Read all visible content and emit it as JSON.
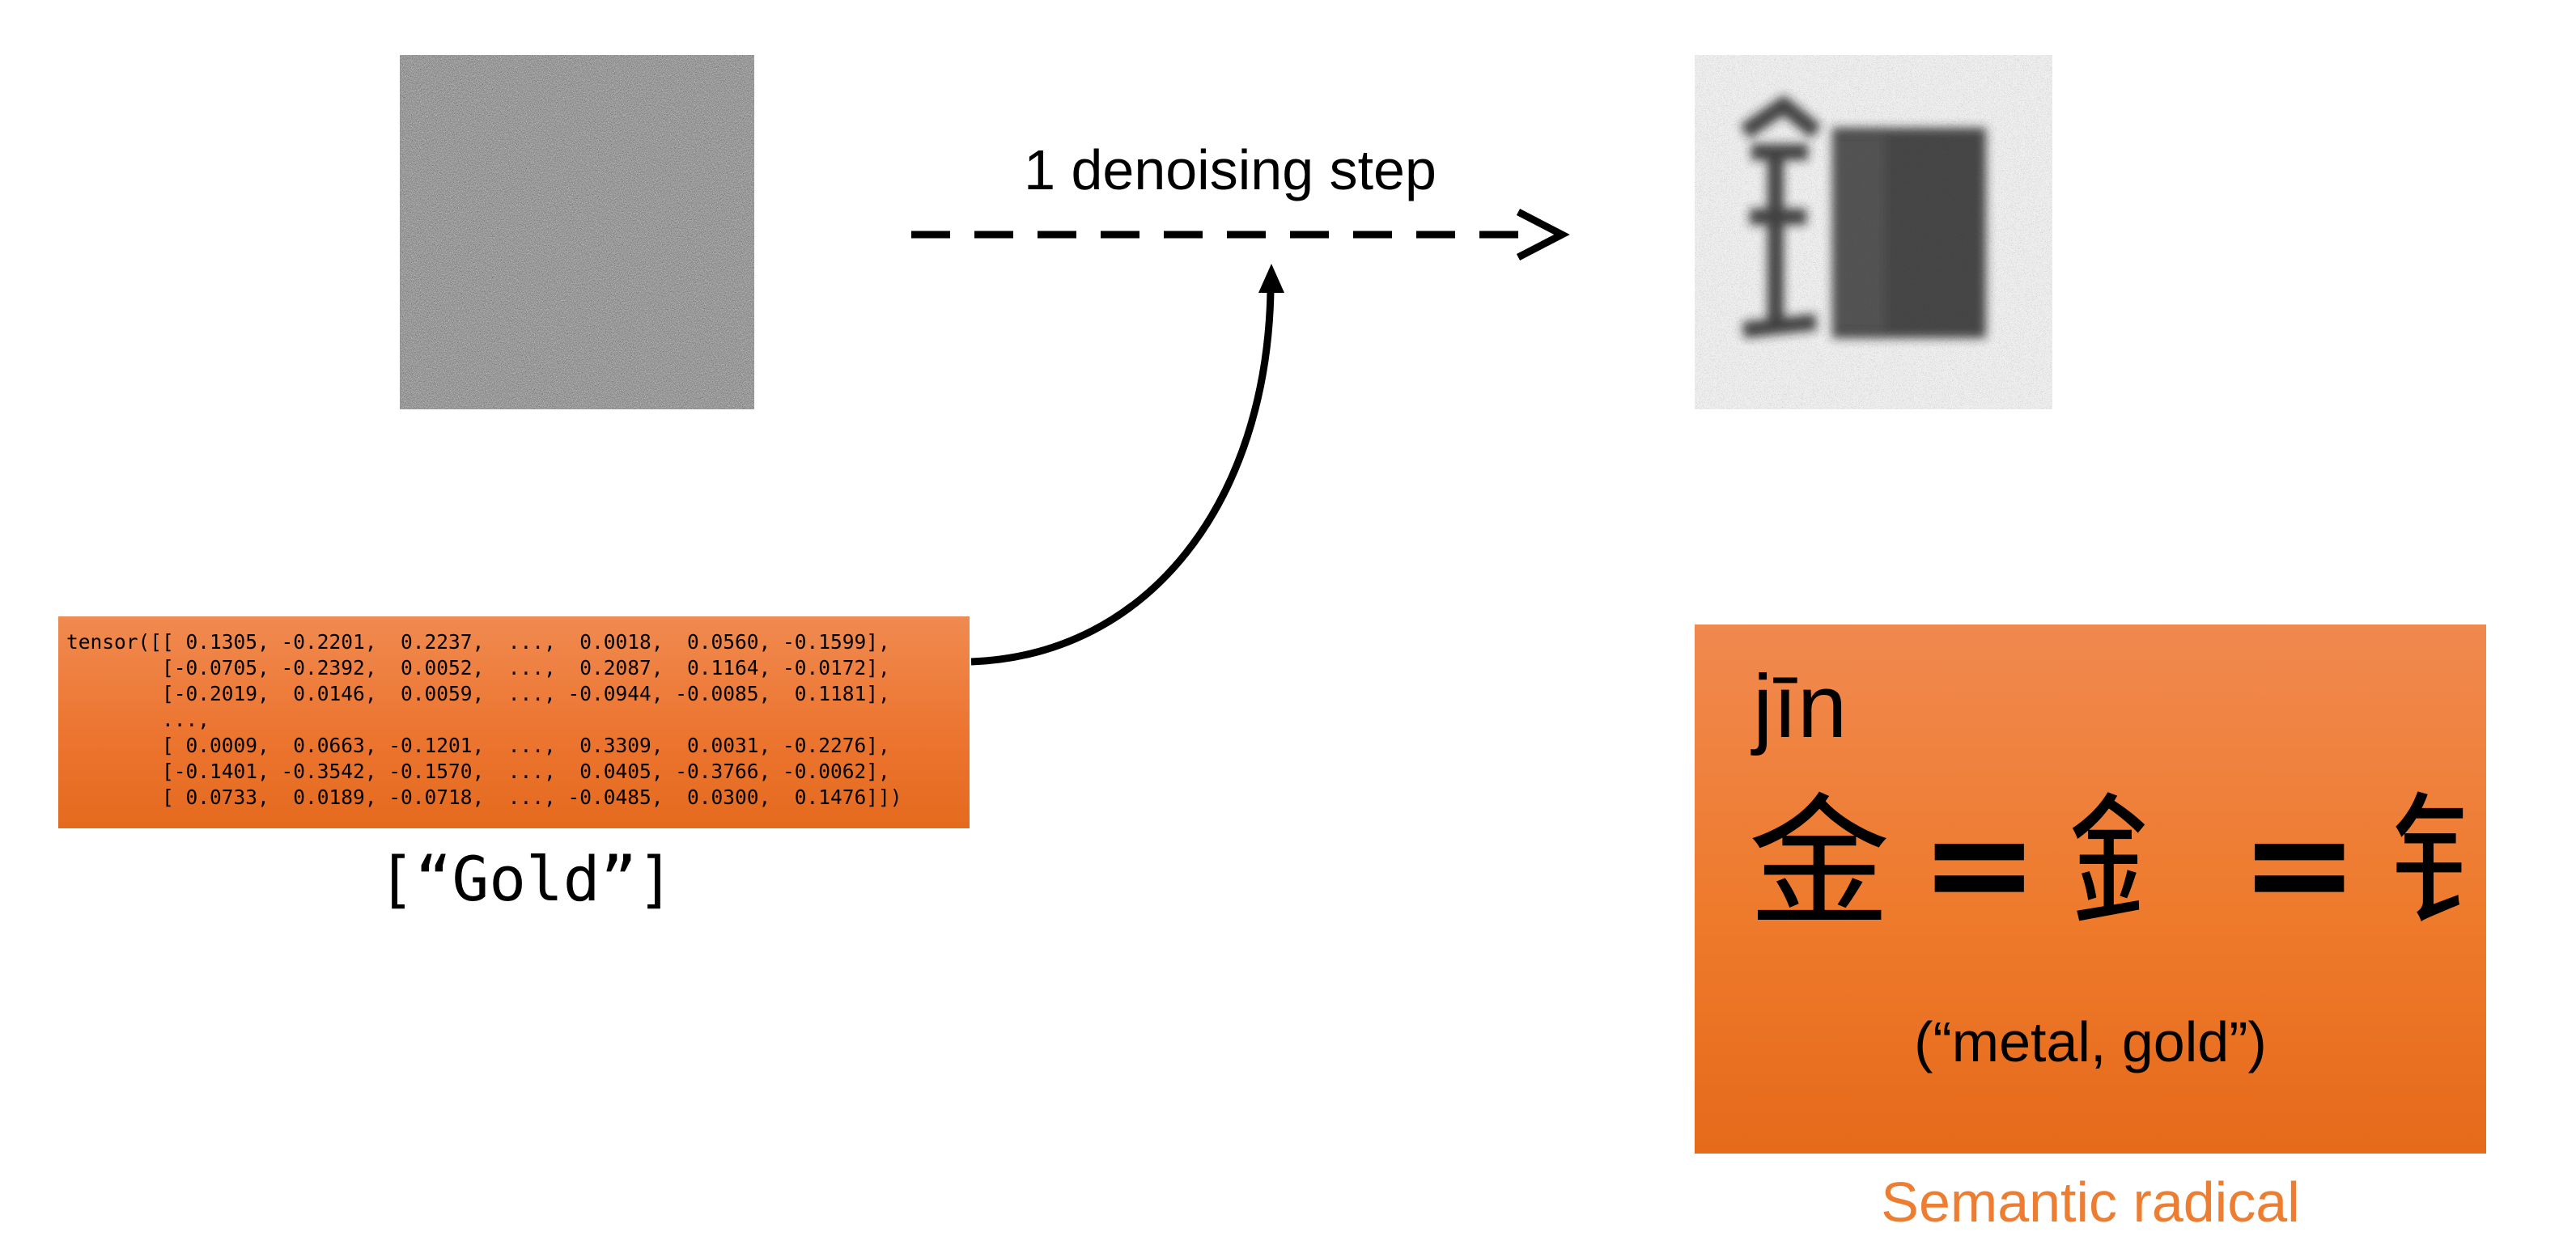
{
  "step_label": "1 denoising step",
  "tensor_text": "tensor([[ 0.1305, -0.2201,  0.2237,  ...,  0.0018,  0.0560, -0.1599],\n        [-0.0705, -0.2392,  0.0052,  ...,  0.2087,  0.1164, -0.0172],\n        [-0.2019,  0.0146,  0.0059,  ..., -0.0944, -0.0085,  0.1181],\n        ...,\n        [ 0.0009,  0.0663, -0.1201,  ...,  0.3309,  0.0031, -0.2276],\n        [-0.1401, -0.3542, -0.1570,  ...,  0.0405, -0.3766, -0.0062],\n        [ 0.0733,  0.0189, -0.0718,  ..., -0.0485,  0.0300,  0.1476]])",
  "prompt_label": "[“Gold”]",
  "radical": {
    "pinyin": "jīn",
    "char_full": "金",
    "equals": "=",
    "char_side": "釒",
    "char_simplified": "钅",
    "gloss": "(“metal, gold”)",
    "caption": "Semantic radical"
  },
  "colors": {
    "orange_accent": "#ee7d31",
    "caption_orange": "#ed7d31"
  }
}
